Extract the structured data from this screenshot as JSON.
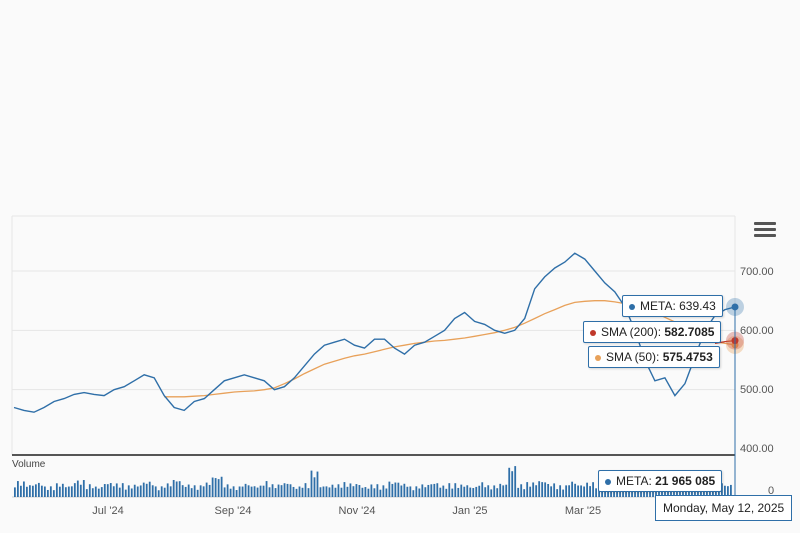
{
  "menu": {
    "icon": "hamburger-menu-icon"
  },
  "colors": {
    "price": "#2f6fa8",
    "sma200": "#c0392b",
    "sma50": "#e8a15a",
    "volume": "#2f6fa8"
  },
  "tooltips": {
    "meta_label": "META:",
    "meta_value": "639.43",
    "sma200_label": "SMA (200):",
    "sma200_value": "582.7085",
    "sma50_label": "SMA (50):",
    "sma50_value": "575.4753",
    "volume_label": "META:",
    "volume_value": "21 965 085",
    "date": "Monday, May 12, 2025"
  },
  "volume_title": "Volume",
  "chart_data": {
    "type": "line",
    "x_tick_labels": [
      "Jul '24",
      "Sep '24",
      "Nov '24",
      "Jan '25",
      "Mar '25"
    ],
    "y_tick_labels": [
      "700.00",
      "600.00",
      "500.00",
      "400.00"
    ],
    "ylim": [
      380,
      780
    ],
    "volume_tick_labels": [
      "0"
    ],
    "grid": true,
    "series": [
      {
        "name": "META",
        "values": [
          470,
          465,
          462,
          470,
          480,
          485,
          492,
          495,
          492,
          490,
          500,
          505,
          515,
          525,
          520,
          490,
          470,
          465,
          480,
          485,
          500,
          515,
          520,
          525,
          520,
          515,
          500,
          505,
          520,
          540,
          560,
          575,
          580,
          585,
          575,
          570,
          585,
          585,
          570,
          560,
          575,
          580,
          590,
          600,
          620,
          630,
          615,
          610,
          600,
          595,
          600,
          620,
          670,
          690,
          705,
          715,
          730,
          720,
          700,
          680,
          665,
          640,
          600,
          550,
          515,
          520,
          490,
          510,
          555,
          600,
          625,
          635,
          639.43
        ]
      },
      {
        "name": "SMA (200)",
        "values": [
          null,
          null,
          null,
          null,
          null,
          null,
          null,
          null,
          null,
          null,
          null,
          null,
          null,
          null,
          null,
          null,
          null,
          null,
          null,
          null,
          null,
          null,
          null,
          null,
          null,
          null,
          null,
          null,
          null,
          null,
          null,
          null,
          null,
          null,
          null,
          null,
          null,
          null,
          null,
          null,
          null,
          null,
          null,
          null,
          null,
          null,
          null,
          null,
          null,
          null,
          null,
          null,
          null,
          null,
          null,
          null,
          null,
          null,
          null,
          null,
          null,
          null,
          null,
          null,
          null,
          null,
          null,
          null,
          null,
          null,
          578,
          581,
          582.7085
        ]
      },
      {
        "name": "SMA (50)",
        "values": [
          null,
          null,
          null,
          null,
          null,
          null,
          null,
          null,
          null,
          null,
          null,
          null,
          null,
          null,
          null,
          488,
          488,
          488,
          489,
          490,
          492,
          494,
          496,
          497,
          498,
          500,
          503,
          510,
          518,
          527,
          535,
          543,
          548,
          553,
          557,
          560,
          564,
          568,
          572,
          575,
          578,
          580,
          582,
          583,
          585,
          587,
          590,
          593,
          596,
          600,
          605,
          612,
          620,
          628,
          635,
          642,
          647,
          649,
          650,
          650,
          648,
          645,
          641,
          636,
          630,
          622,
          614,
          605,
          596,
          588,
          581,
          578,
          575.4753
        ]
      }
    ],
    "volume": [
      15,
      12,
      14,
      10,
      13,
      11,
      16,
      12,
      10,
      14,
      13,
      11,
      12,
      15,
      10,
      13,
      17,
      12,
      11,
      14,
      20,
      12,
      10,
      13,
      11,
      15,
      12,
      14,
      10,
      13,
      25,
      11,
      12,
      14,
      13,
      10,
      12,
      11,
      15,
      13,
      10,
      12,
      14,
      11,
      13,
      12,
      10,
      14,
      11,
      13,
      30,
      12,
      14,
      16,
      13,
      11,
      15,
      12,
      14,
      13,
      11,
      16,
      15,
      20,
      18,
      14,
      13,
      12,
      15,
      11,
      13,
      14,
      12
    ]
  }
}
